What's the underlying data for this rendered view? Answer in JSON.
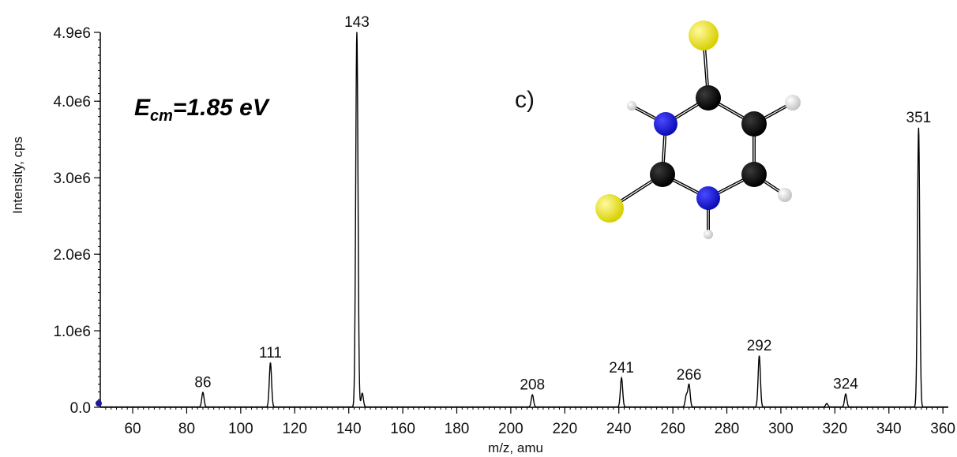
{
  "chart_data": {
    "type": "line",
    "title": "",
    "xlabel": "m/z, amu",
    "ylabel": "Intensity, cps",
    "xlim": [
      48,
      362
    ],
    "ylim": [
      0,
      4900000
    ],
    "x_ticks": [
      60,
      80,
      100,
      120,
      140,
      160,
      180,
      200,
      220,
      240,
      260,
      280,
      300,
      320,
      340,
      360
    ],
    "x_tick_labels": [
      "60",
      "80",
      "100",
      "120",
      "140",
      "160",
      "180",
      "200",
      "220",
      "240",
      "260",
      "280",
      "300",
      "320",
      "340",
      "360"
    ],
    "y_ticks": [
      0,
      1000000,
      2000000,
      3000000,
      4000000,
      4900000
    ],
    "y_tick_labels": [
      "0.0",
      "1.0e6",
      "2.0e6",
      "3.0e6",
      "4.0e6",
      "4.9e6"
    ],
    "grid": false,
    "series": [
      {
        "peaks": [
          {
            "mz": 86,
            "intensity": 190000,
            "label": "86"
          },
          {
            "mz": 111,
            "intensity": 580000,
            "label": "111"
          },
          {
            "mz": 143,
            "intensity": 4900000,
            "label": "143"
          },
          {
            "mz": 145,
            "intensity": 180000,
            "label": ""
          },
          {
            "mz": 208,
            "intensity": 160000,
            "label": "208"
          },
          {
            "mz": 241,
            "intensity": 380000,
            "label": "241"
          },
          {
            "mz": 265,
            "intensity": 150000,
            "label": ""
          },
          {
            "mz": 266,
            "intensity": 290000,
            "label": "266"
          },
          {
            "mz": 292,
            "intensity": 670000,
            "label": "292"
          },
          {
            "mz": 317,
            "intensity": 45000,
            "label": ""
          },
          {
            "mz": 324,
            "intensity": 170000,
            "label": "324"
          },
          {
            "mz": 351,
            "intensity": 3650000,
            "label": "351"
          }
        ]
      }
    ],
    "annotations": {
      "energy_main": "E",
      "energy_sub": "cm",
      "energy_value": "=1.85 eV",
      "panel_label": "c)"
    },
    "line_color": "#000000"
  },
  "molecule": {
    "colors": {
      "sulfur": "#e6e01a",
      "nitrogen": "#1414d2",
      "carbon": "#000000",
      "hydrogen": "#dcdcdc"
    }
  }
}
